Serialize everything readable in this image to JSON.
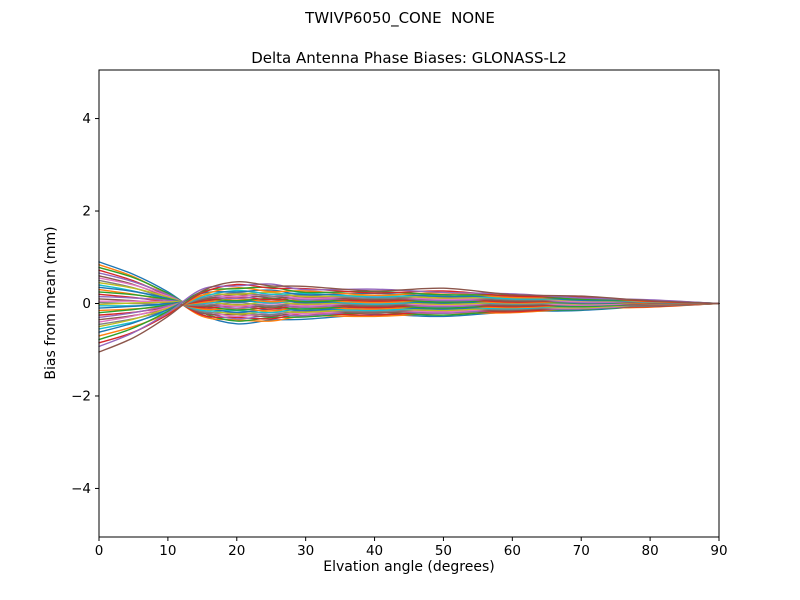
{
  "chart_data": {
    "type": "line",
    "title": "TWIVP6050_CONE  NONE",
    "subtitle": "Delta Antenna Phase Biases: GLONASS-L2",
    "xlabel": "Elvation angle (degrees)",
    "ylabel": "Bias from mean (mm)",
    "xlim": [
      0,
      90
    ],
    "ylim": [
      -5.05,
      5.05
    ],
    "xticks": [
      0,
      10,
      20,
      30,
      40,
      50,
      60,
      70,
      80,
      90
    ],
    "xtick_labels": [
      "0",
      "10",
      "20",
      "30",
      "40",
      "50",
      "60",
      "70",
      "80",
      "90"
    ],
    "yticks": [
      -4,
      -2,
      0,
      2,
      4
    ],
    "ytick_labels": [
      "−4",
      "−2",
      "0",
      "2",
      "4"
    ],
    "grid": false,
    "legend": "none",
    "axes_color": "#000000",
    "background_color": "#ffffff",
    "x": [
      0,
      5,
      10,
      15,
      20,
      25,
      30,
      40,
      50,
      60,
      70,
      80,
      90
    ],
    "series": [
      {
        "name": "bias-line-01",
        "color": "#1f77b4",
        "values": [
          0.9,
          0.63,
          0.25,
          -0.24,
          -0.44,
          -0.36,
          -0.34,
          -0.24,
          -0.28,
          -0.18,
          -0.15,
          -0.06,
          0.0
        ]
      },
      {
        "name": "bias-line-02",
        "color": "#ff7f0e",
        "values": [
          0.84,
          0.58,
          0.19,
          -0.28,
          -0.35,
          -0.38,
          -0.27,
          -0.28,
          -0.21,
          -0.2,
          -0.11,
          -0.08,
          0.0
        ]
      },
      {
        "name": "bias-line-03",
        "color": "#2ca02c",
        "values": [
          0.78,
          0.56,
          0.22,
          -0.2,
          -0.38,
          -0.3,
          -0.29,
          -0.2,
          -0.25,
          -0.15,
          -0.13,
          -0.05,
          0.0
        ]
      },
      {
        "name": "bias-line-04",
        "color": "#d62728",
        "values": [
          0.72,
          0.49,
          0.16,
          -0.25,
          -0.3,
          -0.33,
          -0.22,
          -0.25,
          -0.17,
          -0.18,
          -0.09,
          -0.07,
          0.0
        ]
      },
      {
        "name": "bias-line-05",
        "color": "#9467bd",
        "values": [
          0.66,
          0.47,
          0.19,
          -0.17,
          -0.33,
          -0.25,
          -0.26,
          -0.17,
          -0.21,
          -0.12,
          -0.12,
          -0.04,
          0.0
        ]
      },
      {
        "name": "bias-line-06",
        "color": "#8c564b",
        "values": [
          0.6,
          0.41,
          0.13,
          -0.21,
          -0.24,
          -0.28,
          -0.18,
          -0.21,
          -0.14,
          -0.15,
          -0.07,
          -0.06,
          0.0
        ]
      },
      {
        "name": "bias-line-07",
        "color": "#e377c2",
        "values": [
          0.55,
          0.4,
          0.16,
          -0.14,
          -0.28,
          -0.2,
          -0.22,
          -0.14,
          -0.18,
          -0.1,
          -0.1,
          -0.03,
          0.0
        ]
      },
      {
        "name": "bias-line-08",
        "color": "#7f7f7f",
        "values": [
          0.5,
          0.34,
          0.1,
          -0.18,
          -0.2,
          -0.24,
          -0.15,
          -0.18,
          -0.11,
          -0.13,
          -0.06,
          -0.05,
          0.0
        ]
      },
      {
        "name": "bias-line-09",
        "color": "#bcbd22",
        "values": [
          0.45,
          0.33,
          0.14,
          -0.11,
          -0.23,
          -0.16,
          -0.19,
          -0.11,
          -0.15,
          -0.08,
          -0.09,
          -0.02,
          0.0
        ]
      },
      {
        "name": "bias-line-10",
        "color": "#17becf",
        "values": [
          0.4,
          0.27,
          0.08,
          -0.15,
          -0.15,
          -0.2,
          -0.11,
          -0.15,
          -0.08,
          -0.11,
          -0.04,
          -0.04,
          0.0
        ]
      },
      {
        "name": "bias-line-11",
        "color": "#1f77b4",
        "values": [
          0.35,
          0.26,
          0.11,
          -0.08,
          -0.19,
          -0.12,
          -0.15,
          -0.08,
          -0.12,
          -0.05,
          -0.07,
          -0.01,
          0.0
        ]
      },
      {
        "name": "bias-line-12",
        "color": "#ff7f0e",
        "values": [
          0.3,
          0.2,
          0.06,
          -0.12,
          -0.11,
          -0.16,
          -0.08,
          -0.12,
          -0.05,
          -0.09,
          -0.03,
          -0.03,
          0.0
        ]
      },
      {
        "name": "bias-line-13",
        "color": "#2ca02c",
        "values": [
          0.25,
          0.19,
          0.09,
          -0.05,
          -0.14,
          -0.08,
          -0.12,
          -0.05,
          -0.1,
          -0.03,
          -0.06,
          -0.01,
          0.0
        ]
      },
      {
        "name": "bias-line-14",
        "color": "#d62728",
        "values": [
          0.2,
          0.13,
          0.03,
          -0.09,
          -0.06,
          -0.12,
          -0.04,
          -0.09,
          -0.02,
          -0.07,
          -0.01,
          -0.03,
          0.0
        ]
      },
      {
        "name": "bias-line-15",
        "color": "#9467bd",
        "values": [
          0.15,
          0.12,
          0.07,
          -0.02,
          -0.1,
          -0.04,
          -0.08,
          -0.02,
          -0.07,
          -0.01,
          -0.04,
          0.0,
          0.0
        ]
      },
      {
        "name": "bias-line-16",
        "color": "#8c564b",
        "values": [
          0.1,
          0.06,
          0.01,
          -0.06,
          -0.02,
          -0.08,
          -0.01,
          -0.06,
          0.0,
          -0.05,
          0.0,
          -0.02,
          0.0
        ]
      },
      {
        "name": "bias-line-17",
        "color": "#e377c2",
        "values": [
          0.05,
          0.05,
          0.04,
          0.01,
          -0.06,
          0.0,
          -0.05,
          0.01,
          -0.04,
          0.01,
          -0.03,
          0.01,
          0.0
        ]
      },
      {
        "name": "bias-line-18",
        "color": "#7f7f7f",
        "values": [
          0.02,
          0.0,
          -0.02,
          -0.04,
          0.02,
          -0.05,
          0.02,
          -0.03,
          0.03,
          -0.02,
          0.02,
          -0.01,
          0.0
        ]
      },
      {
        "name": "bias-line-19",
        "color": "#bcbd22",
        "values": [
          -0.02,
          0.01,
          0.03,
          0.05,
          -0.03,
          0.04,
          -0.02,
          0.04,
          -0.02,
          0.03,
          -0.01,
          0.02,
          0.0
        ]
      },
      {
        "name": "bias-line-20",
        "color": "#17becf",
        "values": [
          -0.05,
          -0.05,
          -0.03,
          0.0,
          0.06,
          0.01,
          0.06,
          -0.01,
          0.05,
          0.0,
          0.03,
          0.0,
          0.0
        ]
      },
      {
        "name": "bias-line-21",
        "color": "#1f77b4",
        "values": [
          -0.1,
          -0.06,
          0.0,
          0.07,
          0.03,
          0.08,
          0.02,
          0.06,
          0.01,
          0.05,
          0.0,
          0.02,
          0.0
        ]
      },
      {
        "name": "bias-line-22",
        "color": "#ff7f0e",
        "values": [
          -0.15,
          -0.12,
          -0.06,
          0.02,
          0.1,
          0.04,
          0.08,
          0.02,
          0.07,
          0.01,
          0.04,
          0.0,
          0.0
        ]
      },
      {
        "name": "bias-line-23",
        "color": "#2ca02c",
        "values": [
          -0.2,
          -0.13,
          -0.03,
          0.09,
          0.06,
          0.11,
          0.04,
          0.09,
          0.03,
          0.07,
          0.01,
          0.03,
          0.0
        ]
      },
      {
        "name": "bias-line-24",
        "color": "#d62728",
        "values": [
          -0.25,
          -0.19,
          -0.08,
          0.05,
          0.14,
          0.08,
          0.12,
          0.05,
          0.1,
          0.03,
          0.06,
          0.01,
          0.0
        ]
      },
      {
        "name": "bias-line-25",
        "color": "#9467bd",
        "values": [
          -0.3,
          -0.2,
          -0.05,
          0.12,
          0.11,
          0.16,
          0.08,
          0.12,
          0.06,
          0.09,
          0.02,
          0.04,
          0.0
        ]
      },
      {
        "name": "bias-line-26",
        "color": "#8c564b",
        "values": [
          -0.35,
          -0.26,
          -0.11,
          0.08,
          0.19,
          0.12,
          0.15,
          0.08,
          0.13,
          0.05,
          0.07,
          0.01,
          0.0
        ]
      },
      {
        "name": "bias-line-27",
        "color": "#e377c2",
        "values": [
          -0.4,
          -0.27,
          -0.08,
          0.15,
          0.15,
          0.2,
          0.11,
          0.15,
          0.09,
          0.11,
          0.04,
          0.04,
          0.0
        ]
      },
      {
        "name": "bias-line-28",
        "color": "#7f7f7f",
        "values": [
          -0.45,
          -0.33,
          -0.14,
          0.11,
          0.23,
          0.16,
          0.18,
          0.11,
          0.16,
          0.08,
          0.08,
          0.02,
          0.0
        ]
      },
      {
        "name": "bias-line-29",
        "color": "#bcbd22",
        "values": [
          -0.5,
          -0.34,
          -0.1,
          0.18,
          0.2,
          0.24,
          0.15,
          0.18,
          0.12,
          0.13,
          0.06,
          0.05,
          0.0
        ]
      },
      {
        "name": "bias-line-30",
        "color": "#17becf",
        "values": [
          -0.55,
          -0.4,
          -0.17,
          0.14,
          0.28,
          0.2,
          0.22,
          0.14,
          0.19,
          0.1,
          0.1,
          0.03,
          0.0
        ]
      },
      {
        "name": "bias-line-31",
        "color": "#1f77b4",
        "values": [
          -0.62,
          -0.42,
          -0.13,
          0.22,
          0.25,
          0.29,
          0.19,
          0.22,
          0.15,
          0.16,
          0.07,
          0.06,
          0.0
        ]
      },
      {
        "name": "bias-line-32",
        "color": "#ff7f0e",
        "values": [
          -0.7,
          -0.5,
          -0.21,
          0.18,
          0.34,
          0.26,
          0.27,
          0.18,
          0.23,
          0.13,
          0.12,
          0.04,
          0.0
        ]
      },
      {
        "name": "bias-line-33",
        "color": "#2ca02c",
        "values": [
          -0.78,
          -0.53,
          -0.17,
          0.26,
          0.32,
          0.35,
          0.24,
          0.26,
          0.19,
          0.18,
          0.09,
          0.07,
          0.0
        ]
      },
      {
        "name": "bias-line-34",
        "color": "#d62728",
        "values": [
          -0.85,
          -0.62,
          -0.24,
          0.23,
          0.41,
          0.33,
          0.32,
          0.23,
          0.27,
          0.16,
          0.14,
          0.05,
          0.0
        ]
      },
      {
        "name": "bias-line-35",
        "color": "#9467bd",
        "values": [
          -0.93,
          -0.63,
          -0.2,
          0.31,
          0.38,
          0.42,
          0.3,
          0.31,
          0.24,
          0.21,
          0.12,
          0.08,
          0.0
        ]
      },
      {
        "name": "bias-line-36",
        "color": "#8c564b",
        "values": [
          -1.05,
          -0.74,
          -0.28,
          0.27,
          0.47,
          0.38,
          0.37,
          0.27,
          0.33,
          0.19,
          0.16,
          0.06,
          0.0
        ]
      }
    ]
  }
}
